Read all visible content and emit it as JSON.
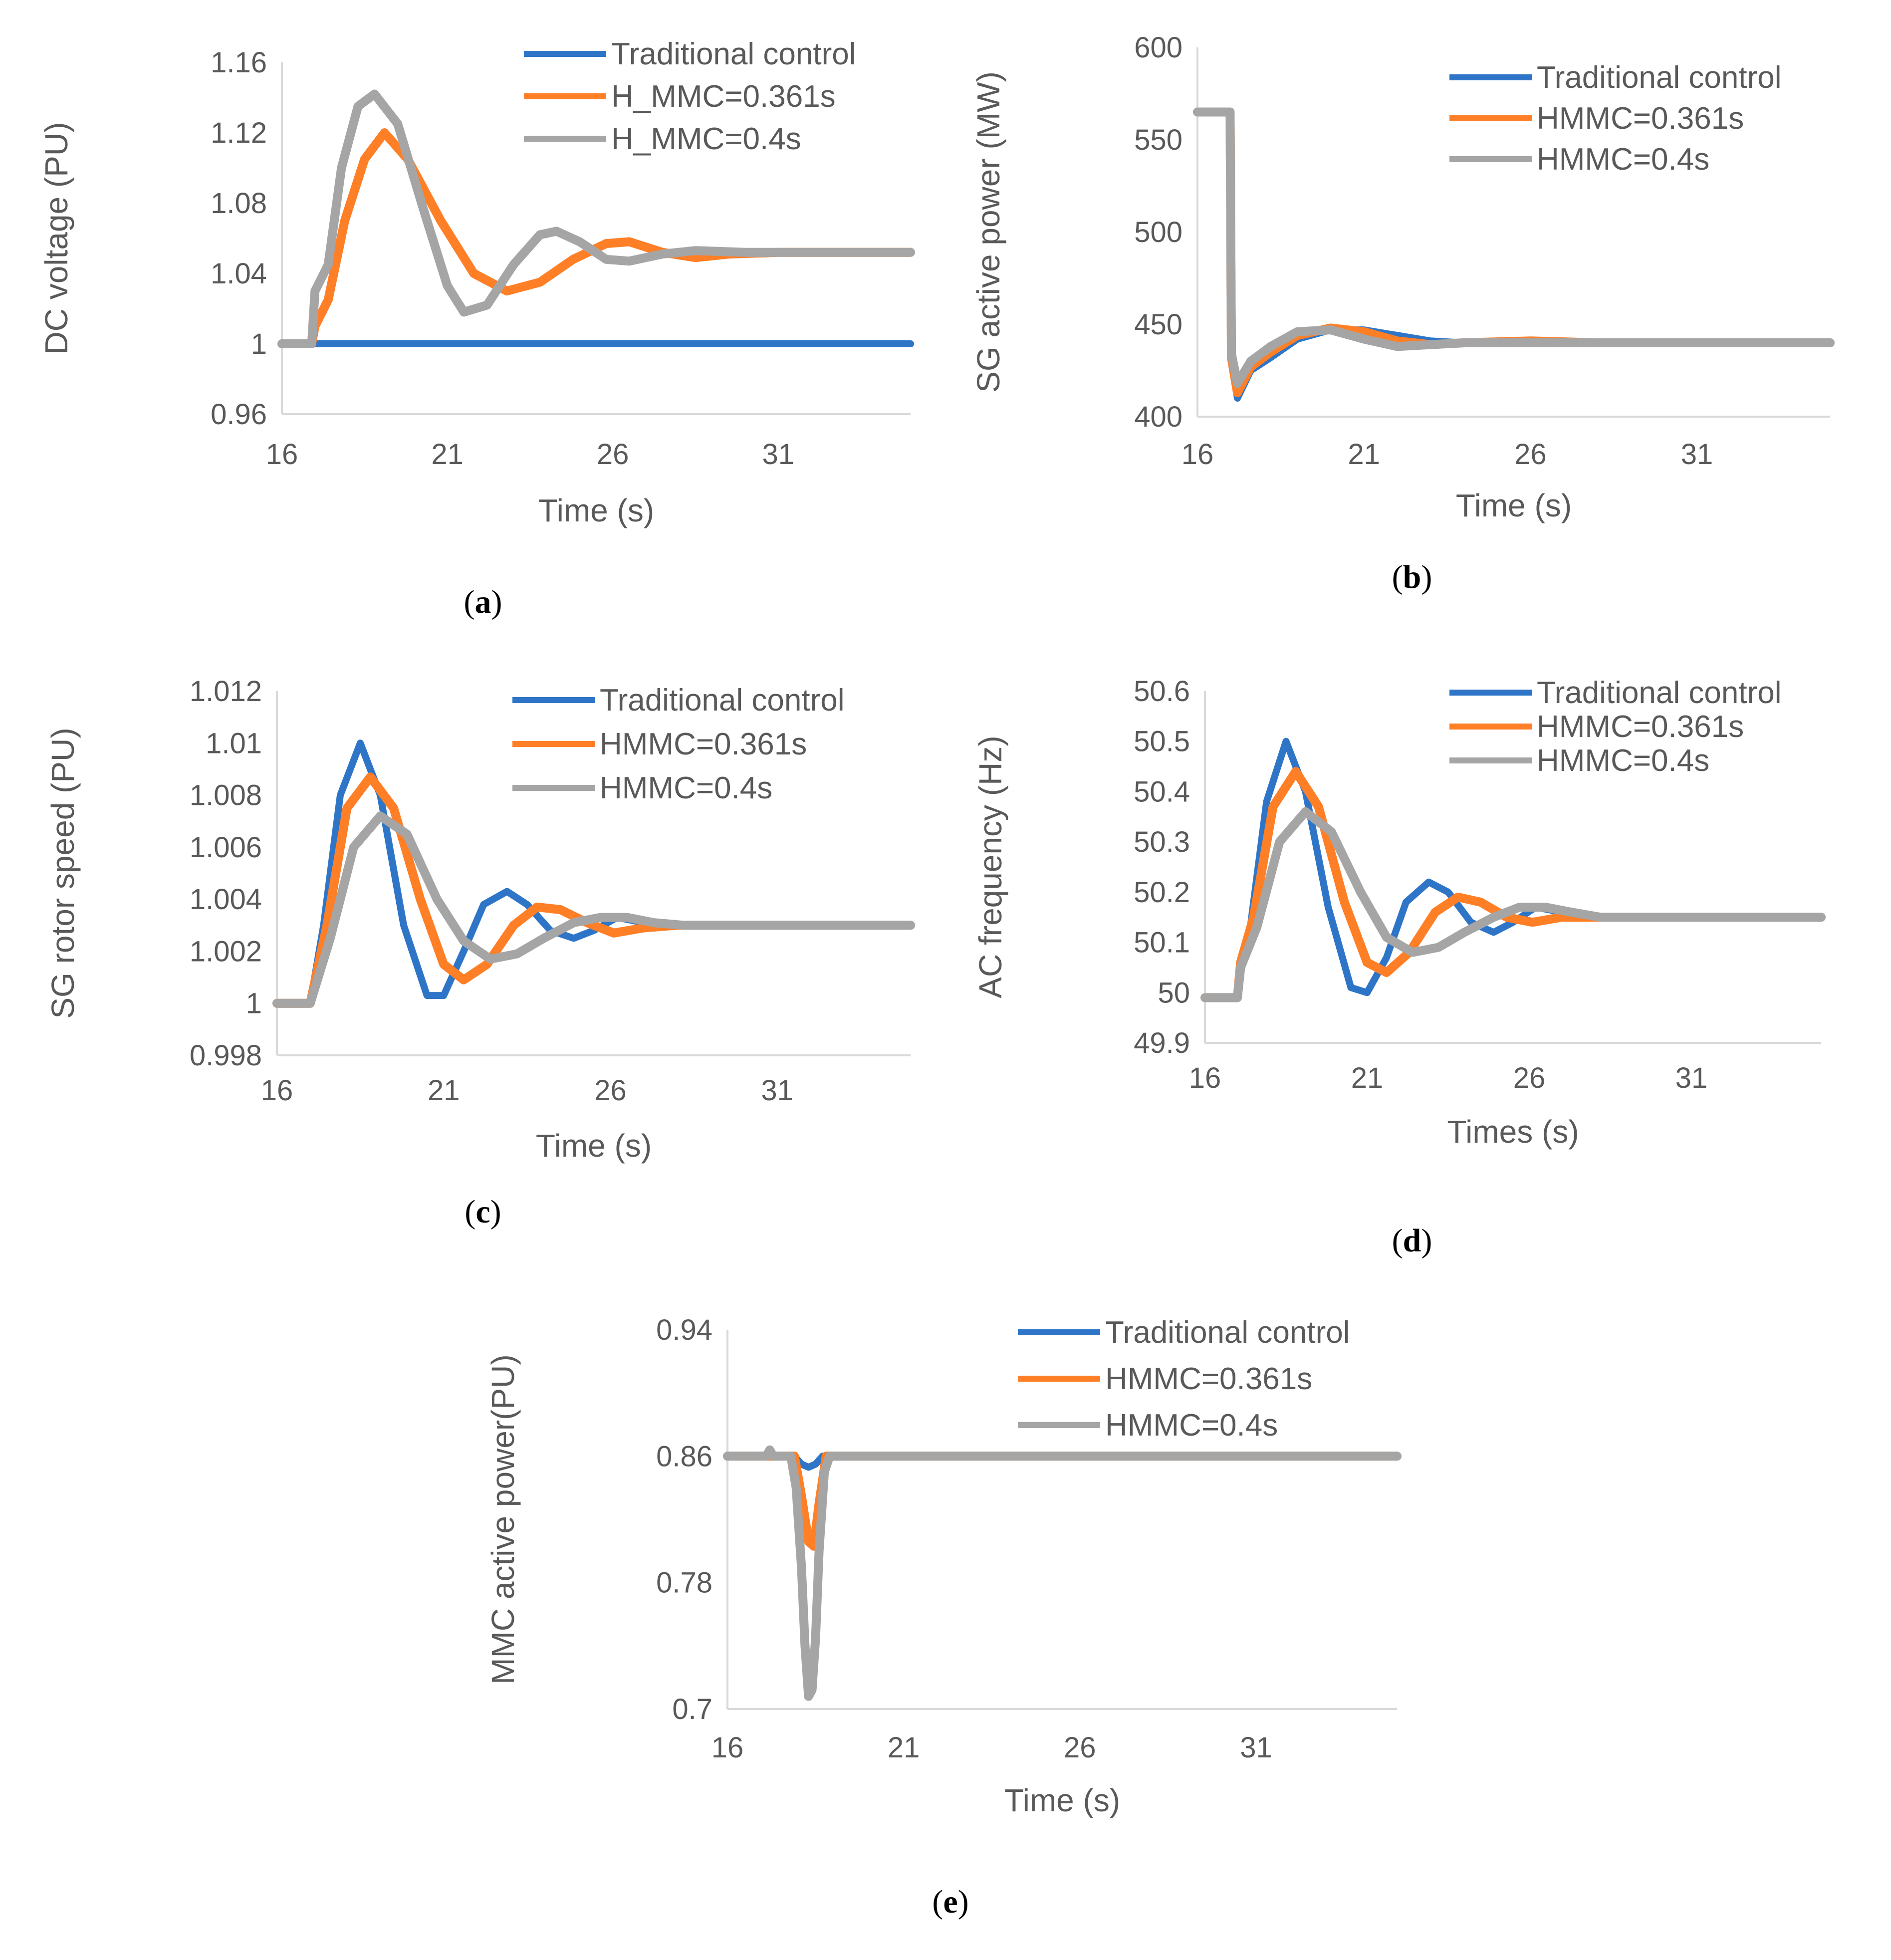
{
  "colors": {
    "traditional": "#2e75c8",
    "h361": "#ff7f27",
    "h04": "#a5a5a5"
  },
  "chart_data": [
    {
      "id": "a",
      "type": "line",
      "caption": "a",
      "xlabel": "Time (s)",
      "ylabel": "DC voltage (PU)",
      "xlim": [
        16,
        35
      ],
      "xticks": [
        "16",
        "21",
        "26",
        "31"
      ],
      "ylim": [
        0.96,
        1.16
      ],
      "yticks": [
        "0.96",
        "1",
        "1.04",
        "1.08",
        "1.12",
        "1.16"
      ],
      "legend": [
        "Traditional control",
        "H_MMC=0.361s",
        "H_MMC=0.4s"
      ],
      "series": [
        {
          "name": "Traditional control",
          "key": "traditional",
          "x": [
            16,
            16.9,
            35
          ],
          "y": [
            1.0,
            1.0,
            1.0
          ]
        },
        {
          "name": "H_MMC=0.361s",
          "key": "h361",
          "x": [
            16,
            16.9,
            17.0,
            17.4,
            17.9,
            18.5,
            19.1,
            19.8,
            20.8,
            21.8,
            22.8,
            23.8,
            24.8,
            25.8,
            26.5,
            27.5,
            28.5,
            29.5,
            31,
            33,
            35
          ],
          "y": [
            1.0,
            1.0,
            1.01,
            1.025,
            1.07,
            1.105,
            1.12,
            1.105,
            1.07,
            1.04,
            1.03,
            1.035,
            1.048,
            1.057,
            1.058,
            1.052,
            1.049,
            1.051,
            1.052,
            1.052,
            1.052
          ]
        },
        {
          "name": "H_MMC=0.4s",
          "key": "h04",
          "x": [
            16,
            16.9,
            17.0,
            17.4,
            17.8,
            18.3,
            18.8,
            19.5,
            20.3,
            21.0,
            21.5,
            22.2,
            23.0,
            23.8,
            24.3,
            25.0,
            25.8,
            26.5,
            27.5,
            28.5,
            30,
            35
          ],
          "y": [
            1.0,
            1.0,
            1.03,
            1.045,
            1.1,
            1.135,
            1.142,
            1.125,
            1.075,
            1.033,
            1.018,
            1.022,
            1.045,
            1.062,
            1.064,
            1.058,
            1.048,
            1.047,
            1.051,
            1.053,
            1.052,
            1.052
          ]
        }
      ]
    },
    {
      "id": "b",
      "type": "line",
      "caption": "b",
      "xlabel": "Time (s)",
      "ylabel": "SG active power (MW)",
      "xlim": [
        16,
        35
      ],
      "xticks": [
        "16",
        "21",
        "26",
        "31"
      ],
      "ylim": [
        400,
        600
      ],
      "yticks": [
        "400",
        "450",
        "500",
        "550",
        "600"
      ],
      "legend": [
        "Traditional control",
        "HMMC=0.361s",
        "HMMC=0.4s"
      ],
      "series": [
        {
          "name": "Traditional control",
          "key": "traditional",
          "x": [
            16,
            16.98,
            17.02,
            17.2,
            17.6,
            18.2,
            19,
            20,
            21,
            22,
            23,
            24,
            26,
            28,
            35
          ],
          "y": [
            565,
            565,
            430,
            410,
            425,
            432,
            442,
            447,
            447,
            444,
            441,
            440,
            440,
            440,
            440
          ]
        },
        {
          "name": "HMMC=0.361s",
          "key": "h361",
          "x": [
            16,
            16.98,
            17.02,
            17.2,
            17.6,
            18.2,
            19,
            20,
            21,
            22,
            23,
            24,
            26,
            28,
            35
          ],
          "y": [
            565,
            565,
            432,
            413,
            427,
            435,
            444,
            448,
            446,
            441,
            439,
            440,
            441,
            440,
            440
          ]
        },
        {
          "name": "HMMC=0.4s",
          "key": "h04",
          "x": [
            16,
            16.98,
            17.02,
            17.2,
            17.6,
            18.2,
            19,
            20,
            21,
            22,
            23,
            24,
            26,
            28,
            35
          ],
          "y": [
            565,
            565,
            434,
            418,
            430,
            438,
            446,
            447,
            442,
            438,
            439,
            440,
            440,
            440,
            440
          ]
        }
      ]
    },
    {
      "id": "c",
      "type": "line",
      "caption": "c",
      "xlabel": "Time (s)",
      "ylabel": "SG rotor speed (PU)",
      "xlim": [
        16,
        35
      ],
      "xticks": [
        "16",
        "21",
        "26",
        "31"
      ],
      "ylim": [
        0.998,
        1.012
      ],
      "yticks": [
        "0.998",
        "1",
        "1.002",
        "1.004",
        "1.006",
        "1.008",
        "1.01",
        "1.012"
      ],
      "legend": [
        "Traditional control",
        "HMMC=0.361s",
        "HMMC=0.4s"
      ],
      "series": [
        {
          "name": "Traditional control",
          "key": "traditional",
          "x": [
            16,
            17.0,
            17.4,
            17.9,
            18.5,
            19.1,
            19.8,
            20.5,
            21.0,
            21.6,
            22.2,
            22.9,
            23.5,
            24.2,
            24.9,
            25.5,
            26.2,
            27.0,
            28,
            29,
            35
          ],
          "y": [
            1.0,
            1.0,
            1.003,
            1.008,
            1.01,
            1.008,
            1.003,
            1.0003,
            1.0003,
            1.002,
            1.0038,
            1.0043,
            1.0038,
            1.0028,
            1.0025,
            1.0028,
            1.0033,
            1.0031,
            1.003,
            1.003,
            1.003
          ]
        },
        {
          "name": "HMMC=0.361s",
          "key": "h361",
          "x": [
            16,
            17.0,
            17.5,
            18.1,
            18.8,
            19.5,
            20.3,
            21.0,
            21.6,
            22.3,
            23.1,
            23.8,
            24.5,
            25.3,
            26.1,
            27.0,
            28,
            35
          ],
          "y": [
            1.0,
            1.0,
            1.003,
            1.0075,
            1.0087,
            1.0075,
            1.004,
            1.0015,
            1.0009,
            1.0015,
            1.003,
            1.0037,
            1.0036,
            1.0031,
            1.0027,
            1.0029,
            1.003,
            1.003
          ]
        },
        {
          "name": "HMMC=0.4s",
          "key": "h04",
          "x": [
            16,
            17.0,
            17.6,
            18.3,
            19.1,
            19.9,
            20.8,
            21.6,
            22.4,
            23.2,
            24.0,
            24.9,
            25.7,
            26.5,
            27.3,
            28.2,
            35
          ],
          "y": [
            1.0,
            1.0,
            1.0025,
            1.006,
            1.0072,
            1.0065,
            1.004,
            1.0024,
            1.0017,
            1.0019,
            1.0025,
            1.0031,
            1.0033,
            1.0033,
            1.0031,
            1.003,
            1.003
          ]
        }
      ]
    },
    {
      "id": "d",
      "type": "line",
      "caption": "d",
      "xlabel": "Times (s)",
      "ylabel": "AC frequency (Hz)",
      "xlim": [
        16,
        35
      ],
      "xticks": [
        "16",
        "21",
        "26",
        "31"
      ],
      "ylim": [
        49.9,
        50.6
      ],
      "yticks": [
        "49.9",
        "50",
        "50.1",
        "50.2",
        "50.3",
        "50.4",
        "50.5",
        "50.6"
      ],
      "legend": [
        "Traditional control",
        "HMMC=0.361s",
        "HMMC=0.4s"
      ],
      "series": [
        {
          "name": "Traditional control",
          "key": "traditional",
          "x": [
            16,
            17.0,
            17.1,
            17.4,
            17.9,
            18.5,
            19.1,
            19.8,
            20.5,
            21.0,
            21.6,
            22.2,
            22.9,
            23.5,
            24.2,
            24.9,
            25.5,
            26.2,
            27.0,
            28,
            29,
            35
          ],
          "y": [
            49.99,
            49.99,
            50.06,
            50.13,
            50.38,
            50.5,
            50.4,
            50.17,
            50.01,
            50.0,
            50.07,
            50.18,
            50.22,
            50.2,
            50.14,
            50.12,
            50.14,
            50.17,
            50.16,
            50.15,
            50.15,
            50.15
          ]
        },
        {
          "name": "HMMC=0.361s",
          "key": "h361",
          "x": [
            16,
            17.0,
            17.1,
            17.5,
            18.1,
            18.8,
            19.5,
            20.3,
            21.0,
            21.6,
            22.3,
            23.1,
            23.8,
            24.5,
            25.3,
            26.1,
            27.0,
            28,
            35
          ],
          "y": [
            49.99,
            49.99,
            50.06,
            50.15,
            50.37,
            50.44,
            50.37,
            50.18,
            50.06,
            50.04,
            50.08,
            50.16,
            50.19,
            50.18,
            50.15,
            50.14,
            50.15,
            50.15,
            50.15
          ]
        },
        {
          "name": "HMMC=0.4s",
          "key": "h04",
          "x": [
            16,
            17.0,
            17.1,
            17.6,
            18.3,
            19.1,
            19.9,
            20.8,
            21.6,
            22.4,
            23.2,
            24.0,
            24.9,
            25.7,
            26.5,
            27.3,
            28.2,
            35
          ],
          "y": [
            49.99,
            49.99,
            50.05,
            50.13,
            50.3,
            50.36,
            50.32,
            50.2,
            50.11,
            50.08,
            50.09,
            50.12,
            50.15,
            50.17,
            50.17,
            50.16,
            50.15,
            50.15
          ]
        }
      ]
    },
    {
      "id": "e",
      "type": "line",
      "caption": "e",
      "xlabel": "Time (s)",
      "ylabel": "MMC active power(PU)",
      "xlim": [
        16,
        35
      ],
      "xticks": [
        "16",
        "21",
        "26",
        "31"
      ],
      "ylim": [
        0.7,
        0.94
      ],
      "yticks": [
        "0.7",
        "0.78",
        "0.86",
        "0.94"
      ],
      "legend": [
        "Traditional control",
        "HMMC=0.361s",
        "HMMC=0.4s"
      ],
      "series": [
        {
          "name": "Traditional control",
          "key": "traditional",
          "x": [
            16,
            17.9,
            18.1,
            18.3,
            18.5,
            18.7,
            35
          ],
          "y": [
            0.86,
            0.86,
            0.855,
            0.853,
            0.855,
            0.86,
            0.86
          ]
        },
        {
          "name": "HMMC=0.361s",
          "key": "h361",
          "x": [
            16,
            17.9,
            18.1,
            18.3,
            18.45,
            18.6,
            18.8,
            35
          ],
          "y": [
            0.86,
            0.86,
            0.835,
            0.806,
            0.803,
            0.83,
            0.86,
            0.86
          ]
        },
        {
          "name": "HMMC=0.4s",
          "key": "h04",
          "x": [
            16,
            17.1,
            17.2,
            17.3,
            17.8,
            17.95,
            18.1,
            18.2,
            18.3,
            18.4,
            18.5,
            18.6,
            18.75,
            18.9,
            35
          ],
          "y": [
            0.86,
            0.86,
            0.864,
            0.86,
            0.86,
            0.84,
            0.79,
            0.74,
            0.708,
            0.712,
            0.745,
            0.8,
            0.85,
            0.86,
            0.86
          ]
        }
      ]
    }
  ]
}
